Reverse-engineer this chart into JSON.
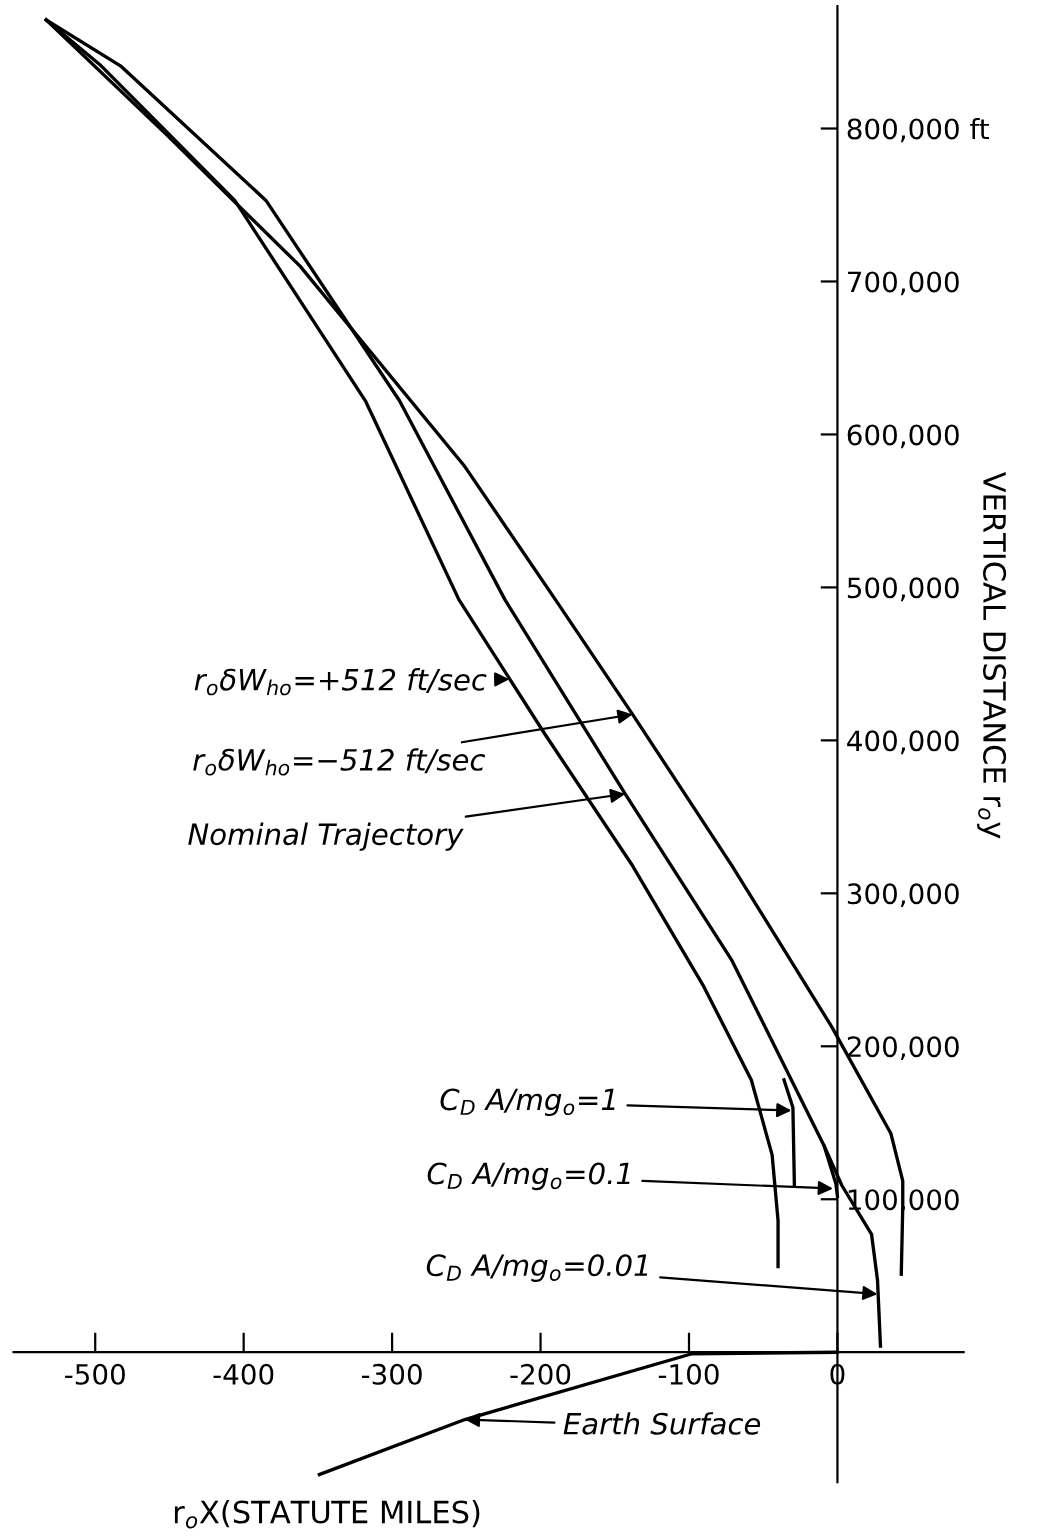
{
  "chart_data": {
    "type": "line",
    "xlabel": "r$_{o}$X(STATUTE MILES)",
    "ylabel": "VERTICAL DISTANCE r$_{o}$y",
    "xlim": [
      -555,
      85
    ],
    "ylim": [
      -85000,
      880000
    ],
    "xticks": [
      {
        "value": -500,
        "label": "-500"
      },
      {
        "value": -400,
        "label": "-400"
      },
      {
        "value": -300,
        "label": "-300"
      },
      {
        "value": -200,
        "label": "-200"
      },
      {
        "value": -100,
        "label": "-100"
      },
      0
    ],
    "yticks": [
      {
        "value": 100000,
        "label": "100,000"
      },
      {
        "value": 200000,
        "label": "200,000"
      },
      {
        "value": 300000,
        "label": "300,000"
      },
      {
        "value": 400000,
        "label": "400,000"
      },
      {
        "value": 500000,
        "label": "500,000"
      },
      {
        "value": 600000,
        "label": "600,000"
      },
      {
        "value": 700000,
        "label": "700,000"
      },
      {
        "value": 800000,
        "label": "800,000 ft"
      }
    ],
    "grid": false,
    "legend": false,
    "marker": "none",
    "line_style": "solid",
    "series": [
      {
        "color": "#000000",
        "x": [
          -533,
          -496,
          -406,
          -318,
          -255,
          -197,
          -138,
          -90,
          -58,
          -44,
          -40,
          -40
        ],
        "values": [
          871000,
          841000,
          753000,
          622000,
          492000,
          404000,
          318000,
          239000,
          178000,
          129000,
          86000,
          56000
        ]
      },
      {
        "color": "#000000",
        "x": [
          -533,
          -483,
          -385,
          -295,
          -224,
          -143,
          -71,
          -31,
          -9,
          3,
          23,
          27,
          29
        ],
        "values": [
          871000,
          841000,
          753000,
          622000,
          492000,
          365000,
          256000,
          178000,
          135000,
          109000,
          77000,
          47000,
          4000
        ]
      },
      {
        "color": "#000000",
        "x": [
          -36,
          -30,
          -29
        ],
        "values": [
          178000,
          160000,
          109000
        ]
      },
      {
        "color": "#000000",
        "x": [
          -9,
          -1,
          0
        ],
        "values": [
          135000,
          110000,
          102000
        ]
      },
      {
        "color": "#000000",
        "x": [
          -533,
          -452,
          -362,
          -251,
          -190,
          -138,
          -71,
          -4,
          36,
          44,
          44,
          43
        ],
        "values": [
          871000,
          796000,
          710000,
          579000,
          492000,
          417000,
          318000,
          213000,
          143000,
          112000,
          95000,
          51000
        ]
      },
      {
        "color": "#000000",
        "x": [
          0,
          -98,
          -251,
          -349
        ],
        "values": [
          0,
          -1000,
          -44000,
          -80000
        ]
      }
    ],
    "annotations": [
      {
        "text": "r$_{o}$δW$_{ho}$=+512 ft/sec",
        "x": -221,
        "y": 440000
      },
      {
        "text": "r$_{o}$δW$_{ho}$=−512 ft/sec",
        "x": -138,
        "y": 417000
      },
      {
        "text": "Nominal Trajectory",
        "x": -143,
        "y": 365000
      },
      {
        "text": "C$_{D}$ A/mg$_{o}$=1",
        "x": -31,
        "y": 158000
      },
      {
        "text": "C$_{D}$ A/mg$_{o}$=0.1",
        "x": -3,
        "y": 107000
      },
      {
        "text": "C$_{D}$ A/mg$_{o}$=0.01",
        "x": 27,
        "y": 38000
      },
      "Earth Surface"
    ]
  }
}
